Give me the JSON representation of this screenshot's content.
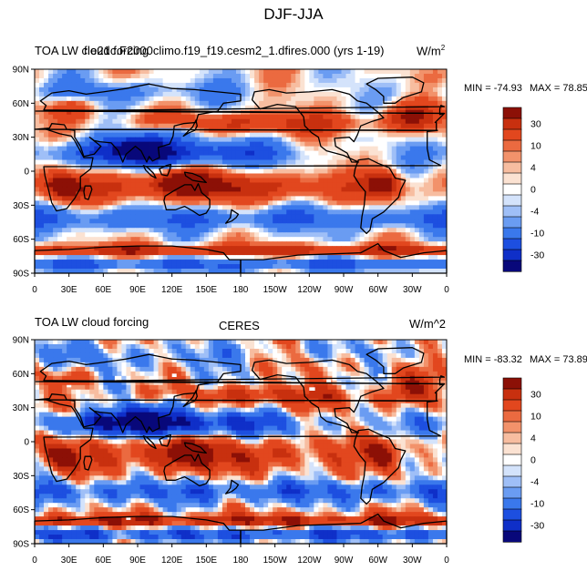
{
  "title": "DJF-JJA",
  "colors": {
    "palette": [
      "#08087a",
      "#0f2fc8",
      "#1d4fe0",
      "#3a78ec",
      "#6a9cf2",
      "#9fbff7",
      "#d4e3fb",
      "#ffffff",
      "#fbe2d2",
      "#f7bda0",
      "#f2926b",
      "#eb6a40",
      "#e2471e",
      "#c8300f",
      "#8c1006"
    ],
    "coast": "#000000",
    "missing": "#ffffff"
  },
  "panels": [
    {
      "id": "model",
      "left_title": "TOA LW cloud forcing",
      "center_title": "f.e21c.F2000climo.f19_f19.cesm2_1.dfires.000 (yrs 1-19)",
      "right_title": "W/m",
      "right_title_sup": "2",
      "min_label": "MIN = -74.93",
      "max_label": "MAX =  78.85",
      "chart_data": {
        "type": "heatmap",
        "variable": "TOA LW cloud forcing (DJF minus JJA)",
        "units": "W/m2",
        "min": -74.93,
        "max": 78.85,
        "x_ticks": [
          "0",
          "30E",
          "60E",
          "90E",
          "120E",
          "150E",
          "180",
          "150W",
          "120W",
          "90W",
          "60W",
          "30W",
          "0"
        ],
        "y_ticks": [
          "90N",
          "60N",
          "30N",
          "0",
          "30S",
          "60S",
          "90S"
        ],
        "levels": [
          -40,
          -30,
          -20,
          -10,
          -6,
          -4,
          -2,
          0,
          2,
          4,
          6,
          10,
          20,
          30,
          40
        ],
        "colorbar_labels": [
          "30",
          "10",
          "4",
          "0",
          "-4",
          "-10",
          "-30"
        ],
        "x_range": [
          0,
          360
        ],
        "y_range": [
          -90,
          90
        ]
      }
    },
    {
      "id": "obs",
      "left_title": "TOA LW cloud forcing",
      "center_title": "CERES",
      "right_title": "W/m^2",
      "right_title_sup": "",
      "min_label": "MIN = -83.32",
      "max_label": "MAX =  73.89",
      "chart_data": {
        "type": "heatmap",
        "variable": "TOA LW cloud forcing (DJF minus JJA)",
        "units": "W/m^2",
        "min": -83.32,
        "max": 73.89,
        "x_ticks": [
          "0",
          "30E",
          "60E",
          "90E",
          "120E",
          "150E",
          "180",
          "150W",
          "120W",
          "90W",
          "60W",
          "30W",
          "0"
        ],
        "y_ticks": [
          "90N",
          "60N",
          "30N",
          "0",
          "30S",
          "60S",
          "90S"
        ],
        "levels": [
          -40,
          -30,
          -20,
          -10,
          -6,
          -4,
          -2,
          0,
          2,
          4,
          6,
          10,
          20,
          30,
          40
        ],
        "colorbar_labels": [
          "30",
          "10",
          "4",
          "0",
          "-4",
          "-10",
          "-30"
        ],
        "x_range": [
          0,
          360
        ],
        "y_range": [
          -90,
          90
        ]
      }
    }
  ]
}
